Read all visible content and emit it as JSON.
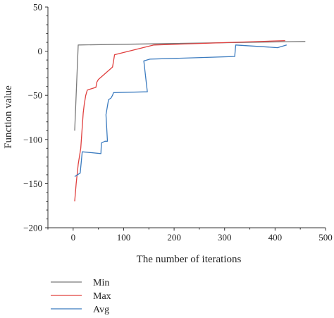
{
  "chart_data": {
    "type": "line",
    "title": "",
    "xlabel": "The number of iterations",
    "ylabel": "Function value",
    "xlim": [
      -50,
      500
    ],
    "ylim": [
      -200,
      50
    ],
    "xticks": [
      0,
      100,
      200,
      300,
      400,
      500
    ],
    "yticks": [
      -200,
      -150,
      -100,
      -50,
      0,
      50
    ],
    "xtick_labels": [
      "0",
      "100",
      "200",
      "300",
      "400",
      "500"
    ],
    "ytick_labels": [
      "−200",
      "−150",
      "−100",
      "−50",
      "0",
      "50"
    ],
    "grid": false,
    "legend": "bottom-left, below plot",
    "series": [
      {
        "name": "Min",
        "color": "#7a7a7a",
        "points": [
          [
            3,
            -90
          ],
          [
            10,
            7
          ],
          [
            460,
            11
          ]
        ]
      },
      {
        "name": "Max",
        "color": "#e0403f",
        "points": [
          [
            3,
            -170
          ],
          [
            6,
            -150
          ],
          [
            10,
            -128
          ],
          [
            15,
            -110
          ],
          [
            20,
            -70
          ],
          [
            22,
            -60
          ],
          [
            25,
            -50
          ],
          [
            28,
            -44
          ],
          [
            45,
            -41
          ],
          [
            47,
            -35
          ],
          [
            50,
            -32
          ],
          [
            78,
            -18
          ],
          [
            82,
            -4
          ],
          [
            160,
            7
          ],
          [
            420,
            12
          ]
        ]
      },
      {
        "name": "Avg",
        "color": "#3b7bbf",
        "points": [
          [
            3,
            -142
          ],
          [
            14,
            -138
          ],
          [
            18,
            -114
          ],
          [
            55,
            -116
          ],
          [
            56,
            -104
          ],
          [
            63,
            -102
          ],
          [
            68,
            -102
          ],
          [
            65,
            -72
          ],
          [
            70,
            -55
          ],
          [
            75,
            -53
          ],
          [
            78,
            -50
          ],
          [
            80,
            -47
          ],
          [
            147,
            -46
          ],
          [
            140,
            -11
          ],
          [
            152,
            -9
          ],
          [
            320,
            -6
          ],
          [
            322,
            7
          ],
          [
            405,
            4
          ],
          [
            423,
            7
          ]
        ]
      }
    ]
  }
}
